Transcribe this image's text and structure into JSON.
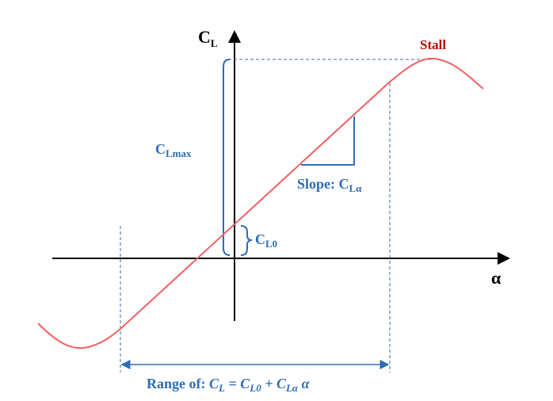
{
  "axes": {
    "y_label": {
      "main": "C",
      "sub": "L"
    },
    "x_label": "α"
  },
  "annotations": {
    "stall": "Stall",
    "cl_max": {
      "main": "C",
      "sub": "Lmax"
    },
    "slope": {
      "prefix": "Slope:",
      "main": "C",
      "sub": "Lα"
    },
    "cl0": {
      "main": "C",
      "sub": "L0"
    },
    "range": {
      "prefix": "Range of:",
      "equation": [
        {
          "main": "C",
          "sub": "L"
        },
        {
          "text": "="
        },
        {
          "main": "C",
          "sub": "L0"
        },
        {
          "text": "+"
        },
        {
          "main": "C",
          "sub": "Lα"
        },
        {
          "text": "α"
        }
      ]
    }
  }
}
